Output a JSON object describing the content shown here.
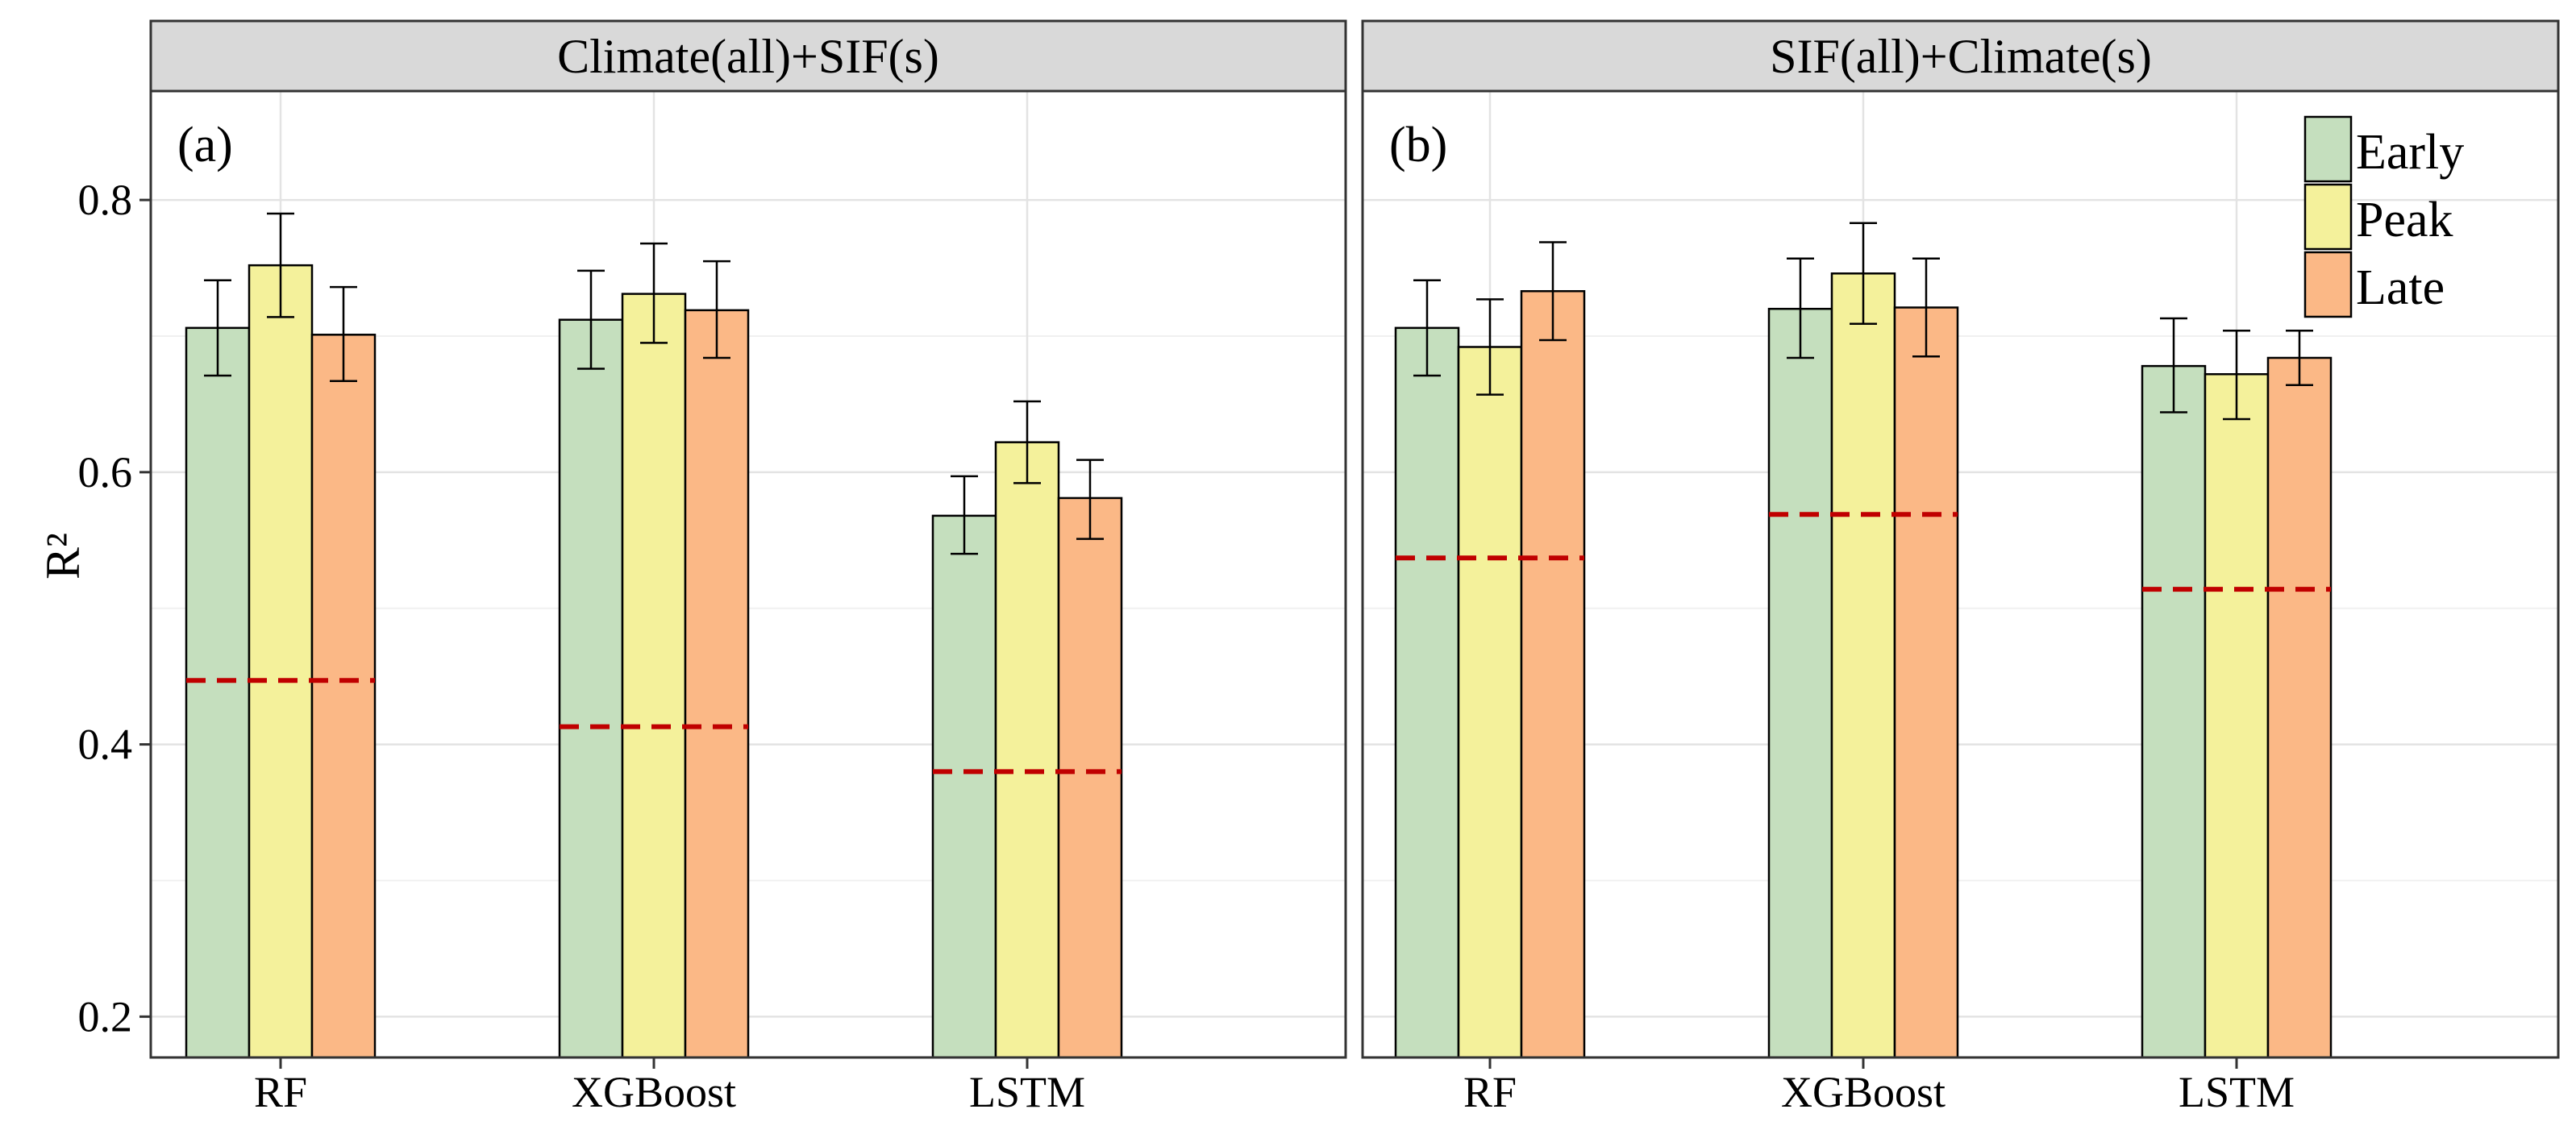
{
  "chart_data": {
    "type": "bar",
    "ylabel": "R²",
    "ylim": [
      0.17,
      0.88
    ],
    "yticks": [
      0.2,
      0.4,
      0.6,
      0.8
    ],
    "ytick_labels": [
      "0.2",
      "0.4",
      "0.6",
      "0.8"
    ],
    "grid": true,
    "legend_position": "top-right",
    "colors": {
      "Early": "#c5dfbe",
      "Peak": "#f4f19b",
      "Late": "#fbb886"
    },
    "series_names": [
      "Early",
      "Peak",
      "Late"
    ],
    "categories": [
      "RF",
      "XGBoost",
      "LSTM"
    ],
    "panels": [
      {
        "strip": "Climate(all)+SIF(s)",
        "tag": "(a)",
        "series": [
          {
            "name": "Early",
            "values": [
              0.706,
              0.712,
              0.568
            ],
            "err_low": [
              0.671,
              0.676,
              0.54
            ],
            "err_high": [
              0.741,
              0.748,
              0.597
            ]
          },
          {
            "name": "Peak",
            "values": [
              0.752,
              0.731,
              0.622
            ],
            "err_low": [
              0.714,
              0.695,
              0.592
            ],
            "err_high": [
              0.79,
              0.768,
              0.652
            ]
          },
          {
            "name": "Late",
            "values": [
              0.701,
              0.719,
              0.581
            ],
            "err_low": [
              0.667,
              0.684,
              0.551
            ],
            "err_high": [
              0.736,
              0.755,
              0.609
            ]
          }
        ],
        "baseline": [
          0.447,
          0.413,
          0.38
        ]
      },
      {
        "strip": "SIF(all)+Climate(s)",
        "tag": "(b)",
        "series": [
          {
            "name": "Early",
            "values": [
              0.706,
              0.72,
              0.678
            ],
            "err_low": [
              0.671,
              0.684,
              0.644
            ],
            "err_high": [
              0.741,
              0.757,
              0.713
            ]
          },
          {
            "name": "Peak",
            "values": [
              0.692,
              0.746,
              0.672
            ],
            "err_low": [
              0.657,
              0.709,
              0.639
            ],
            "err_high": [
              0.727,
              0.783,
              0.704
            ]
          },
          {
            "name": "Late",
            "values": [
              0.733,
              0.721,
              0.684
            ],
            "err_low": [
              0.697,
              0.685,
              0.664
            ],
            "err_high": [
              0.769,
              0.757,
              0.704
            ]
          }
        ],
        "baseline": [
          0.537,
          0.569,
          0.514
        ]
      }
    ]
  }
}
